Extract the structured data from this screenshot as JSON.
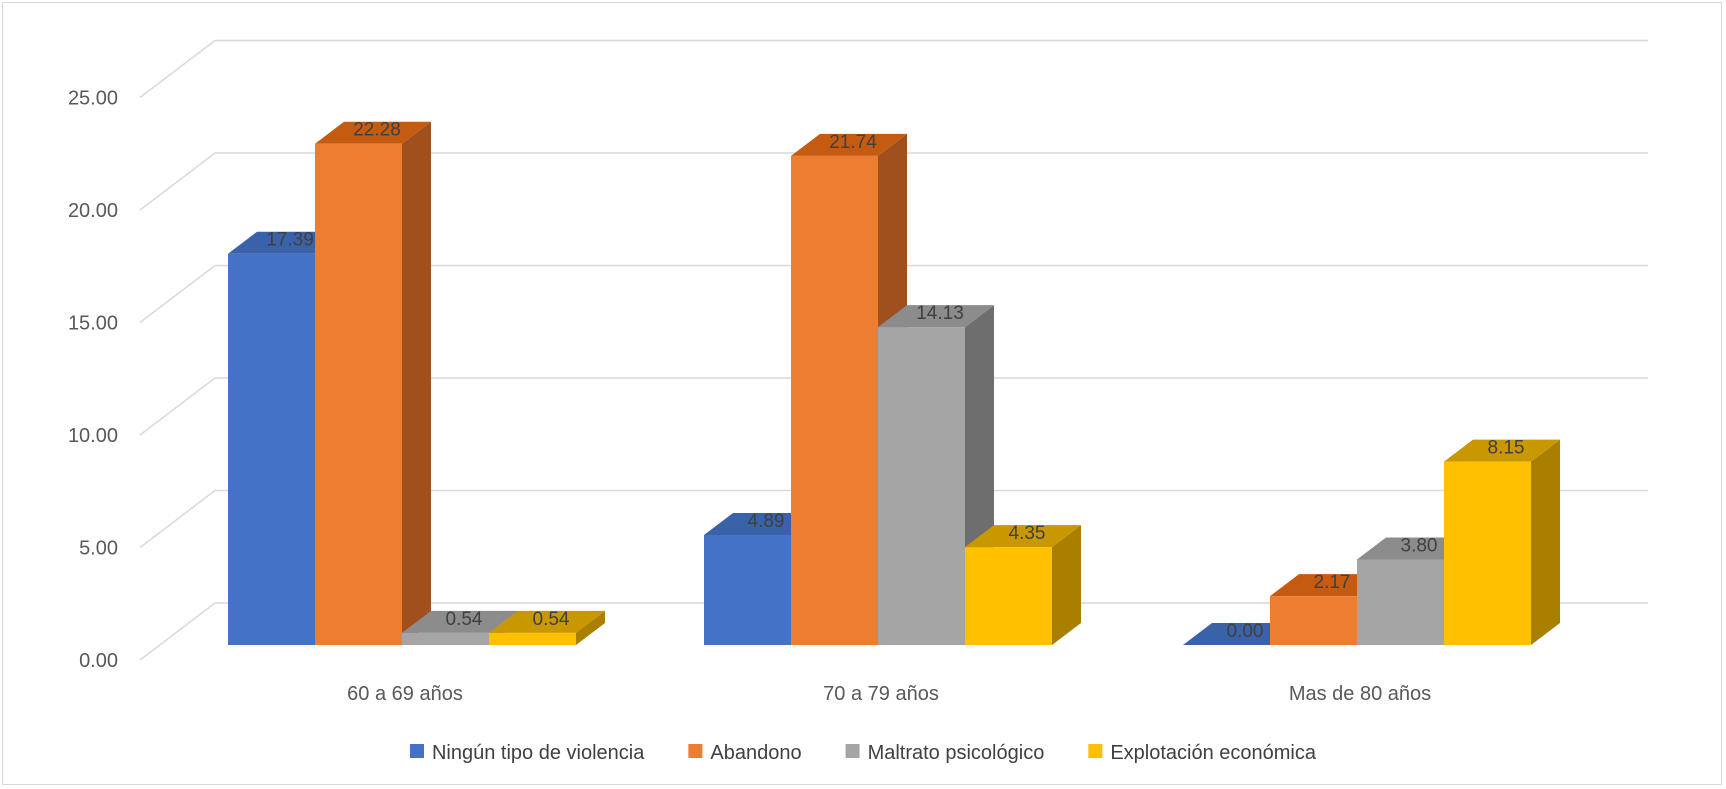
{
  "chart_data": {
    "type": "bar",
    "style": "3d-clustered-column",
    "categories": [
      "60 a 69 años",
      "70 a 79 años",
      "Mas de 80 años"
    ],
    "series": [
      {
        "name": "Ningún tipo de violencia",
        "color": "#4472c4",
        "side_color": "#2f5597",
        "top_color": "#3a62a8",
        "values": [
          17.39,
          4.89,
          0.0
        ]
      },
      {
        "name": "Abandono",
        "color": "#ed7d31",
        "side_color": "#a0501c",
        "top_color": "#c55a11",
        "values": [
          22.28,
          21.74,
          2.17
        ]
      },
      {
        "name": "Maltrato psicológico",
        "color": "#a5a5a5",
        "side_color": "#6e6e6e",
        "top_color": "#8c8c8c",
        "values": [
          0.54,
          14.13,
          3.8
        ]
      },
      {
        "name": "Explotación económica",
        "color": "#ffc000",
        "side_color": "#a97f00",
        "top_color": "#c99700",
        "values": [
          0.54,
          4.35,
          8.15
        ]
      }
    ],
    "value_labels": [
      [
        "17.39",
        "4.89",
        "0.00"
      ],
      [
        "22.28",
        "21.74",
        "2.17"
      ],
      [
        "0.54",
        "14.13",
        "3.80"
      ],
      [
        "0.54",
        "4.35",
        "8.15"
      ]
    ],
    "yticks": [
      "0.00",
      "5.00",
      "10.00",
      "15.00",
      "20.00",
      "25.00"
    ],
    "ytick_values": [
      0,
      5,
      10,
      15,
      20,
      25
    ],
    "ylim": [
      0,
      25
    ],
    "grid": true,
    "legend_position": "bottom",
    "title": "",
    "xlabel": "",
    "ylabel": ""
  }
}
